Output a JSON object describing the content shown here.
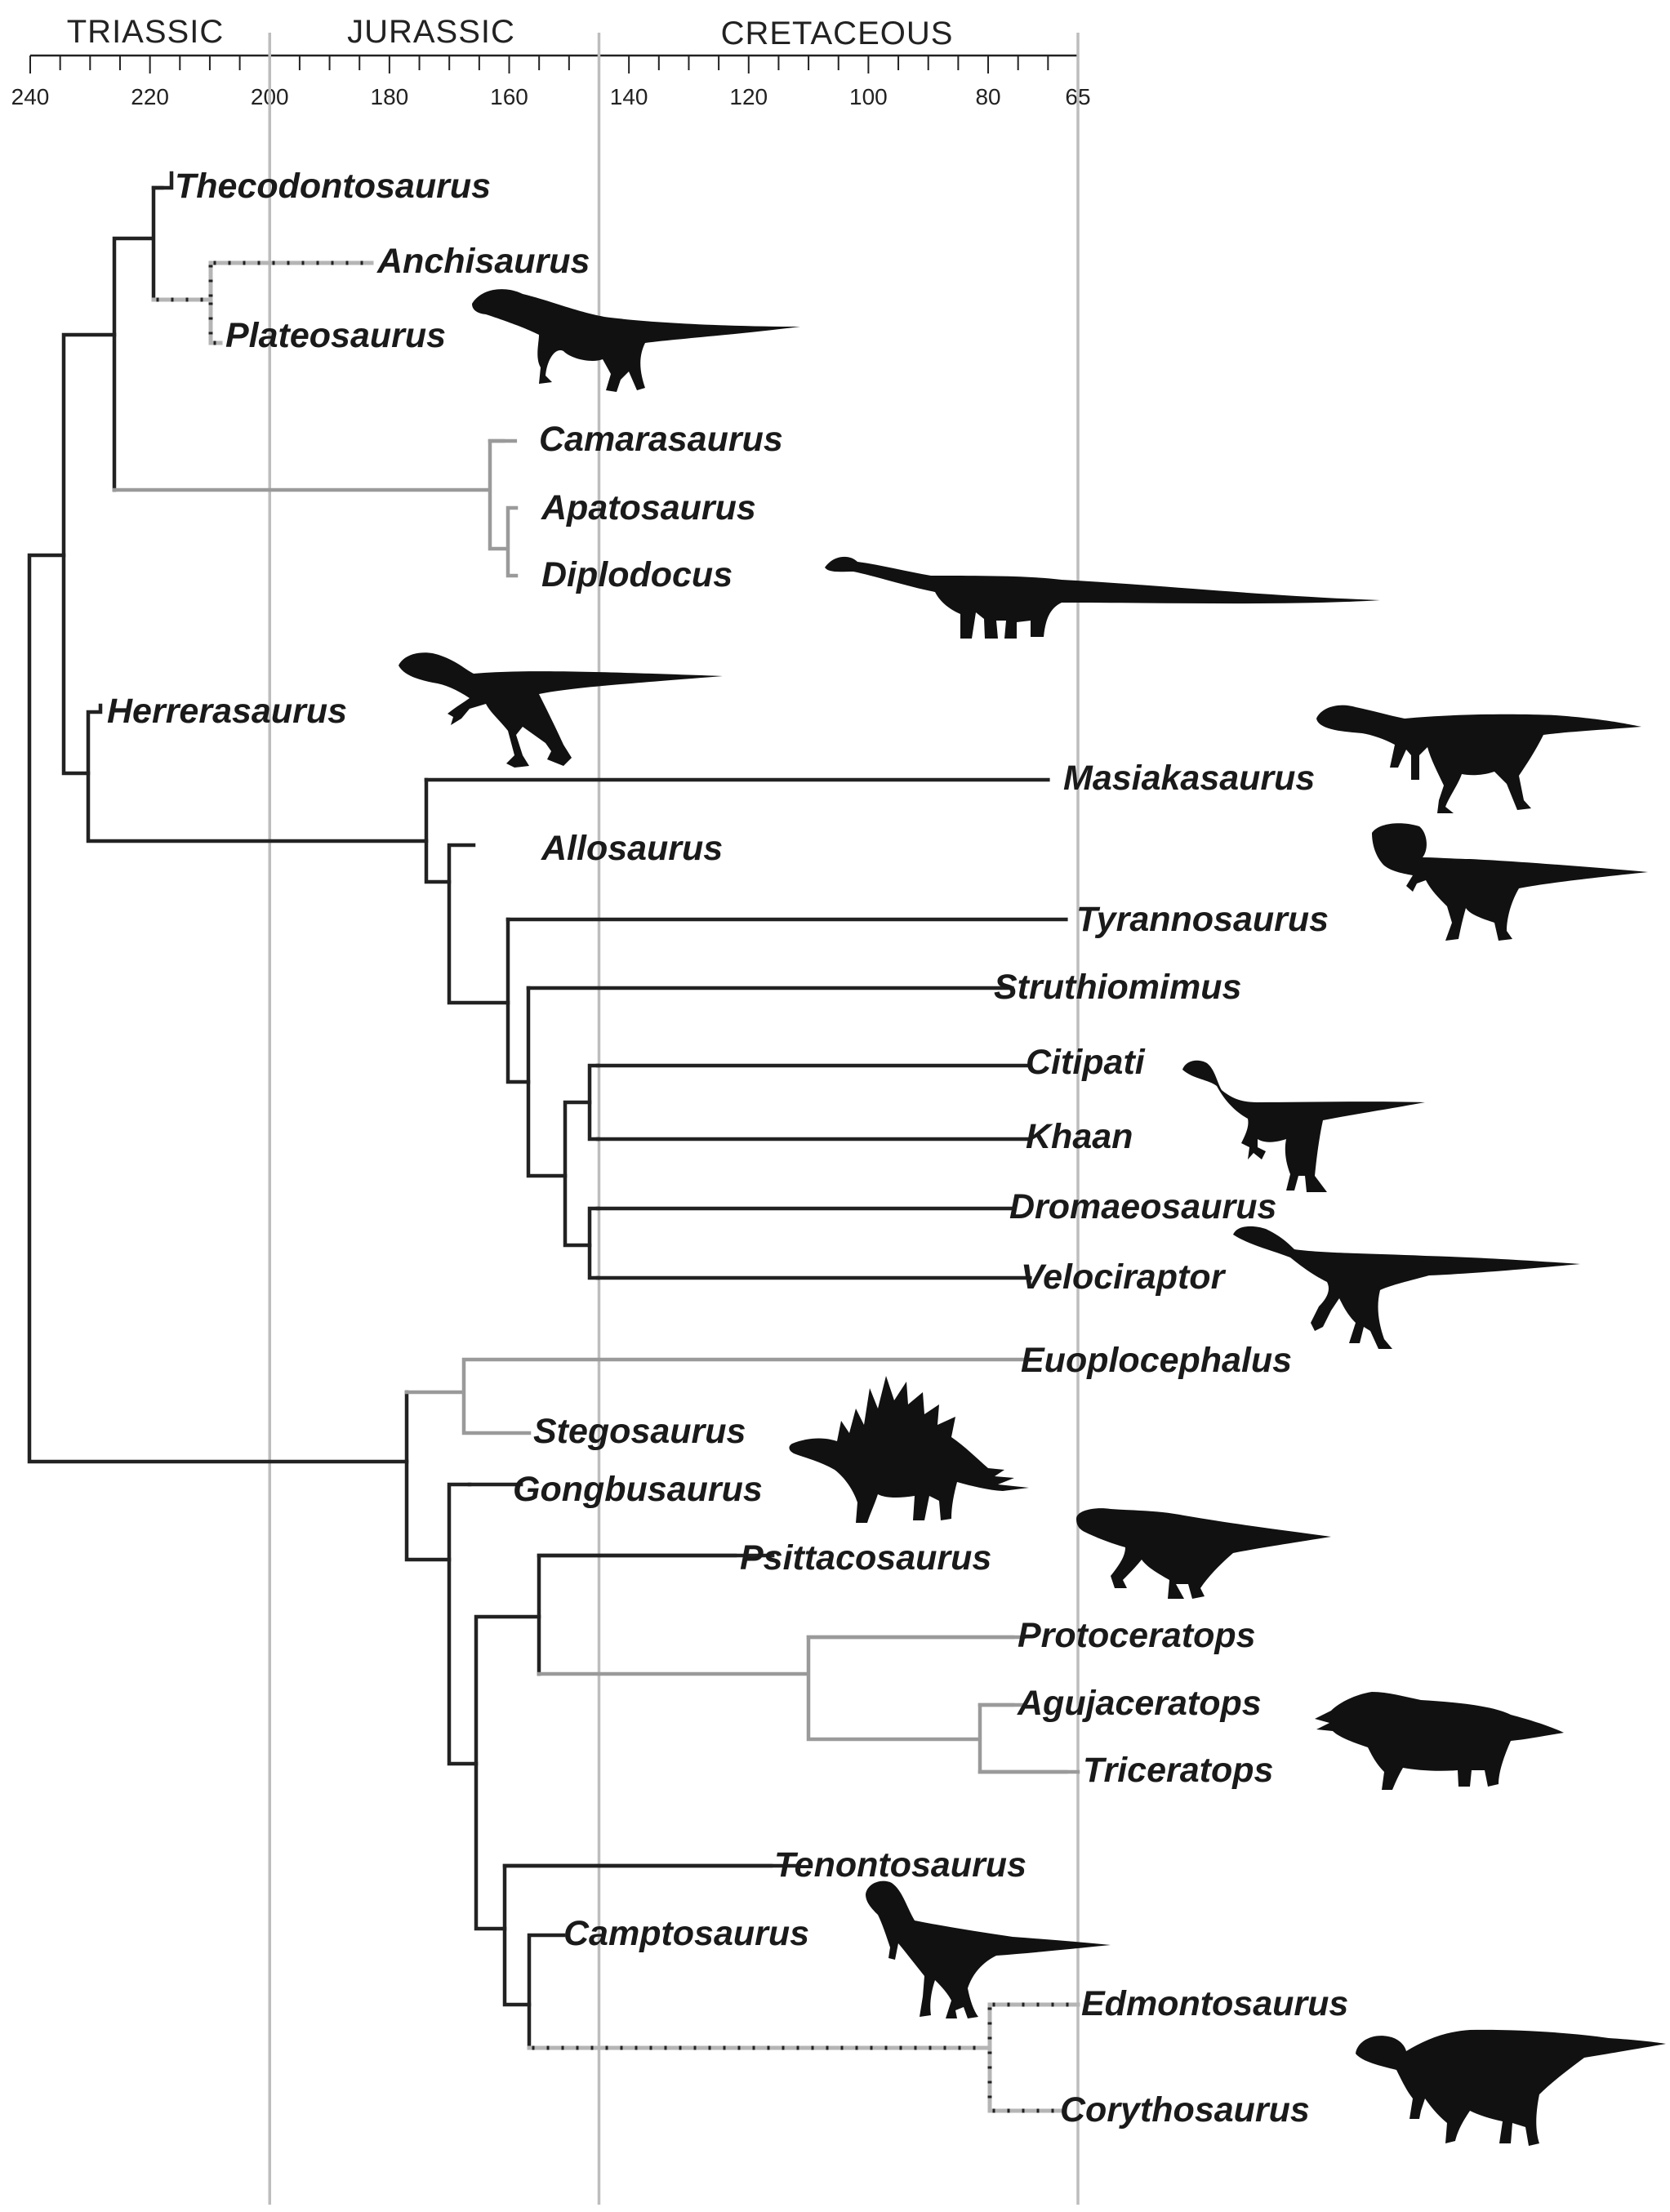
{
  "colors": {
    "solid": "#222222",
    "gray": "#9a9a9a",
    "dash_dark": "#222222",
    "dash_light": "#b5b5b5",
    "boundary": "#bdbdbd",
    "silhouette": "#111111"
  },
  "timescale": {
    "unit": "Ma",
    "ticks": [
      "240",
      "220",
      "200",
      "180",
      "160",
      "140",
      "120",
      "100",
      "80",
      "65"
    ],
    "tick_values": [
      240,
      220,
      200,
      180,
      160,
      140,
      120,
      100,
      80,
      65
    ],
    "minor_step": 5,
    "range": [
      240,
      65
    ],
    "boundaries": [
      200,
      145,
      65
    ],
    "periods": [
      {
        "name": "TRIASSIC",
        "from": 240,
        "to": 200
      },
      {
        "name": "JURASSIC",
        "from": 200,
        "to": 145
      },
      {
        "name": "CRETACEOUS",
        "from": 145,
        "to": 65
      }
    ]
  },
  "taxa": [
    {
      "name": "Thecodontosaurus",
      "end": 218,
      "style": "solid"
    },
    {
      "name": "Anchisaurus",
      "end": 182,
      "style": "dashed"
    },
    {
      "name": "Plateosaurus",
      "end": 209,
      "style": "dashed",
      "icon": "plateosaurus-silhouette"
    },
    {
      "name": "Camarasaurus",
      "end": 159,
      "style": "gray"
    },
    {
      "name": "Apatosaurus",
      "end": 158,
      "style": "gray"
    },
    {
      "name": "Diplodocus",
      "end": 158,
      "style": "gray",
      "icon": "sauropod-silhouette"
    },
    {
      "name": "Herrerasaurus",
      "end": 228,
      "style": "solid",
      "icon": "herrerasaurus-silhouette"
    },
    {
      "name": "Masiakasaurus",
      "end": 70,
      "style": "solid",
      "icon": "abelisaur-silhouette"
    },
    {
      "name": "Allosaurus",
      "end": 155,
      "style": "solid"
    },
    {
      "name": "Tyrannosaurus",
      "end": 67,
      "style": "solid",
      "icon": "tyrannosaur-silhouette"
    },
    {
      "name": "Struthiomimus",
      "end": 76,
      "style": "solid"
    },
    {
      "name": "Citipati",
      "end": 73,
      "style": "solid",
      "icon": "oviraptorosaur-silhouette"
    },
    {
      "name": "Khaan",
      "end": 73,
      "style": "solid"
    },
    {
      "name": "Dromaeosaurus",
      "end": 76,
      "style": "solid"
    },
    {
      "name": "Velociraptor",
      "end": 73,
      "style": "solid",
      "icon": "dromaeosaur-silhouette"
    },
    {
      "name": "Euoplocephalus",
      "end": 73,
      "style": "gray"
    },
    {
      "name": "Stegosaurus",
      "end": 152,
      "style": "gray",
      "icon": "stegosaurus-silhouette"
    },
    {
      "name": "Gongbusaurus",
      "end": 158,
      "style": "solid"
    },
    {
      "name": "Psittacosaurus",
      "end": 116,
      "style": "solid",
      "icon": "psittacosaurus-silhouette"
    },
    {
      "name": "Protoceratops",
      "end": 74,
      "style": "gray"
    },
    {
      "name": "Agujaceratops",
      "end": 74,
      "style": "gray",
      "icon": "ceratopsid-silhouette"
    },
    {
      "name": "Triceratops",
      "end": 67,
      "style": "gray"
    },
    {
      "name": "Tenontosaurus",
      "end": 112,
      "style": "solid"
    },
    {
      "name": "Camptosaurus",
      "end": 153,
      "style": "solid",
      "icon": "camptosaurus-silhouette"
    },
    {
      "name": "Edmontosaurus",
      "end": 66,
      "style": "dashed"
    },
    {
      "name": "Corythosaurus",
      "end": 75,
      "style": "dashed",
      "icon": "hadrosaur-silhouette"
    }
  ]
}
